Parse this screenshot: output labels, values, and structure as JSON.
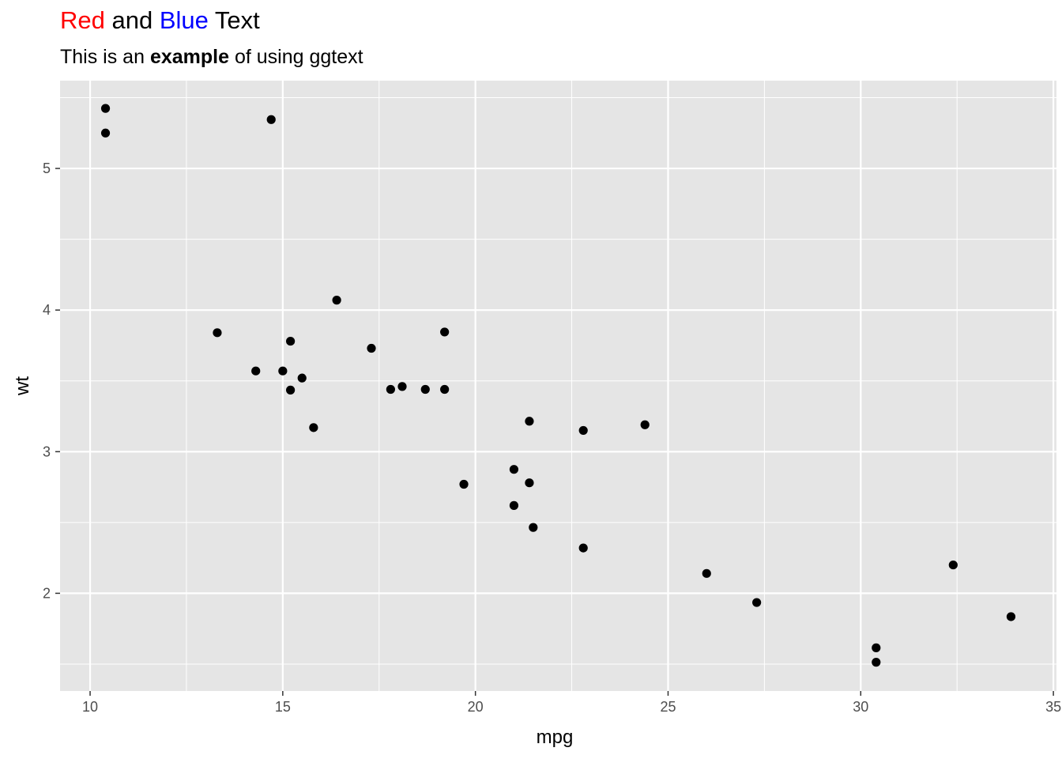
{
  "chart_data": {
    "type": "scatter",
    "title": {
      "part1": "Red",
      "part2": " and ",
      "part3": "Blue",
      "part4": " Text",
      "color1": "#ff0000",
      "color3": "#0000ff"
    },
    "subtitle": {
      "part1": "This is an ",
      "part2_bold": "example",
      "part3": " of using ggtext"
    },
    "xlabel": "mpg",
    "ylabel": "wt",
    "xlim": [
      9.22,
      35.08
    ],
    "ylim": [
      1.31,
      5.62
    ],
    "x_ticks": [
      10,
      15,
      20,
      25,
      30,
      35
    ],
    "y_ticks": [
      2,
      3,
      4,
      5
    ],
    "x_minor": [
      12.5,
      17.5,
      22.5,
      27.5,
      32.5
    ],
    "y_minor": [
      1.5,
      2.5,
      3.5,
      4.5,
      5.5
    ],
    "panel_color": "#e5e5e5",
    "grid_color": "#ffffff",
    "point_color": "#000000",
    "points": [
      {
        "x": 21.0,
        "y": 2.62
      },
      {
        "x": 21.0,
        "y": 2.875
      },
      {
        "x": 22.8,
        "y": 2.32
      },
      {
        "x": 21.4,
        "y": 3.215
      },
      {
        "x": 18.7,
        "y": 3.44
      },
      {
        "x": 18.1,
        "y": 3.46
      },
      {
        "x": 14.3,
        "y": 3.57
      },
      {
        "x": 24.4,
        "y": 3.19
      },
      {
        "x": 22.8,
        "y": 3.15
      },
      {
        "x": 19.2,
        "y": 3.44
      },
      {
        "x": 17.8,
        "y": 3.44
      },
      {
        "x": 16.4,
        "y": 4.07
      },
      {
        "x": 17.3,
        "y": 3.73
      },
      {
        "x": 15.2,
        "y": 3.78
      },
      {
        "x": 10.4,
        "y": 5.25
      },
      {
        "x": 10.4,
        "y": 5.424
      },
      {
        "x": 14.7,
        "y": 5.345
      },
      {
        "x": 32.4,
        "y": 2.2
      },
      {
        "x": 30.4,
        "y": 1.615
      },
      {
        "x": 33.9,
        "y": 1.835
      },
      {
        "x": 21.5,
        "y": 2.465
      },
      {
        "x": 15.5,
        "y": 3.52
      },
      {
        "x": 15.2,
        "y": 3.435
      },
      {
        "x": 13.3,
        "y": 3.84
      },
      {
        "x": 19.2,
        "y": 3.845
      },
      {
        "x": 27.3,
        "y": 1.935
      },
      {
        "x": 26.0,
        "y": 2.14
      },
      {
        "x": 30.4,
        "y": 1.513
      },
      {
        "x": 15.8,
        "y": 3.17
      },
      {
        "x": 19.7,
        "y": 2.77
      },
      {
        "x": 15.0,
        "y": 3.57
      },
      {
        "x": 21.4,
        "y": 2.78
      }
    ]
  }
}
